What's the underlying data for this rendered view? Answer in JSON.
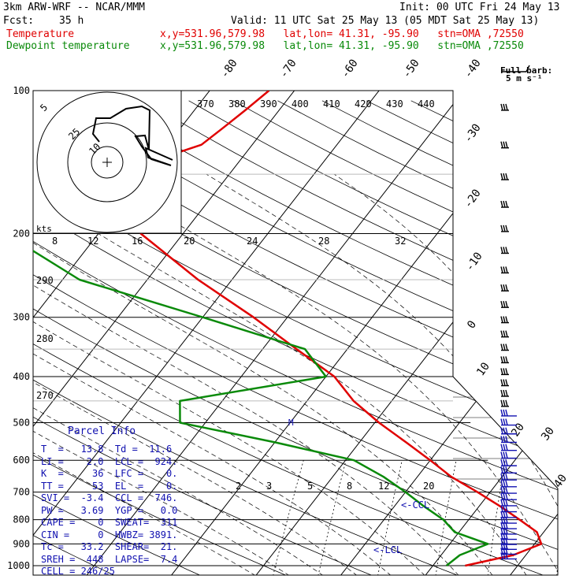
{
  "header": {
    "model": "3km ARW-WRF -- NCAR/MMM",
    "init": "Init: 00 UTC Fri 24 May 13",
    "fcst_label": "Fcst:",
    "fcst_value": "35 h",
    "valid": "Valid: 11 UTC Sat 25 May 13 (05 MDT Sat 25 May 13)",
    "temperature_label": "Temperature",
    "dewpoint_label": "Dewpoint temperature",
    "location": "x,y=531.96,579.98   lat,lon= 41.31, -95.90   stn=OMA ,72550"
  },
  "barb_key": {
    "line1": "Full barb:",
    "line2": "5 m s⁻¹"
  },
  "hodograph": {
    "units": "kts",
    "ring_labels": [
      "5",
      "25",
      "10"
    ]
  },
  "colors": {
    "temperature": "#e00000",
    "dewpoint": "#0a8a0a",
    "parcel": "#1010b0",
    "axes": "#000000"
  },
  "chart_data": {
    "type": "skew-t",
    "ylabel_ticks": [
      "100",
      "200",
      "300",
      "400",
      "500",
      "600",
      "700",
      "800",
      "900",
      "1000"
    ],
    "pressure_levels": [
      100,
      200,
      300,
      400,
      500,
      600,
      700,
      800,
      900,
      1000
    ],
    "temperature_ticks_top": [
      "-80",
      "-70",
      "-60",
      "-50",
      "-40"
    ],
    "temperature_ticks_right": [
      "-30",
      "-20",
      "-10",
      "0",
      "10",
      "20",
      "30",
      "40"
    ],
    "theta_labels": [
      "370",
      "380",
      "390",
      "400",
      "410",
      "420",
      "430",
      "440"
    ],
    "theta_e_labels": [
      "290",
      "280",
      "270"
    ],
    "mixing_ratio_upper": [
      "8",
      "12",
      "16",
      "20",
      "24",
      "28",
      "32"
    ],
    "mixing_ratio_lower": [
      "2",
      "3",
      "5",
      "8",
      "12",
      "20"
    ],
    "level_markers": {
      "ccl": "<-CCL",
      "lcl": "<-LCL",
      "m": "M"
    },
    "series": [
      {
        "name": "Temperature",
        "points": [
          {
            "p": 1000,
            "t": 13.8
          },
          {
            "p": 950,
            "t": 18.5
          },
          {
            "p": 900,
            "t": 20.8
          },
          {
            "p": 850,
            "t": 19.2
          },
          {
            "p": 800,
            "t": 16.0
          },
          {
            "p": 750,
            "t": 12.5
          },
          {
            "p": 700,
            "t": 8.5
          },
          {
            "p": 650,
            "t": 4.0
          },
          {
            "p": 600,
            "t": 0.0
          },
          {
            "p": 550,
            "t": -4.5
          },
          {
            "p": 500,
            "t": -9.5
          },
          {
            "p": 450,
            "t": -14.5
          },
          {
            "p": 400,
            "t": -19.0
          },
          {
            "p": 350,
            "t": -26.0
          },
          {
            "p": 300,
            "t": -34.0
          },
          {
            "p": 250,
            "t": -44.0
          },
          {
            "p": 200,
            "t": -55.0
          },
          {
            "p": 175,
            "t": -58.0
          },
          {
            "p": 150,
            "t": -59.0
          },
          {
            "p": 140,
            "t": -60.0
          },
          {
            "p": 130,
            "t": -56.0
          },
          {
            "p": 120,
            "t": -55.0
          },
          {
            "p": 110,
            "t": -54.0
          },
          {
            "p": 100,
            "t": -53.0
          }
        ]
      },
      {
        "name": "Dewpoint temperature",
        "points": [
          {
            "p": 1000,
            "t": 11.6
          },
          {
            "p": 950,
            "t": 12.2
          },
          {
            "p": 900,
            "t": 14.5
          },
          {
            "p": 850,
            "t": 9.5
          },
          {
            "p": 800,
            "t": 7.0
          },
          {
            "p": 750,
            "t": 3.5
          },
          {
            "p": 700,
            "t": 0.0
          },
          {
            "p": 650,
            "t": -4.0
          },
          {
            "p": 600,
            "t": -9.0
          },
          {
            "p": 550,
            "t": -20.0
          },
          {
            "p": 500,
            "t": -33.0
          },
          {
            "p": 450,
            "t": -35.0
          },
          {
            "p": 400,
            "t": -20.0
          },
          {
            "p": 350,
            "t": -25.0
          },
          {
            "p": 300,
            "t": -40.0
          },
          {
            "p": 250,
            "t": -58.0
          },
          {
            "p": 200,
            "t": -71.0
          },
          {
            "p": 175,
            "t": -72.0
          },
          {
            "p": 150,
            "t": -75.0
          },
          {
            "p": 130,
            "t": -76.0
          },
          {
            "p": 110,
            "t": -78.0
          },
          {
            "p": 100,
            "t": -79.0
          }
        ]
      }
    ]
  },
  "parcel_info": {
    "title": "Parcel Info",
    "rows": [
      "T  =   13.8  Td =  11.6",
      "LI =    2.0  LCL =  924.",
      "K  =     36  LFC =    0.",
      "TT =     53  EL  =    0.",
      "SVI =  -3.4  CCL =  746.",
      "PW =   3.69  YGP =   0.0",
      "CAPE =    0  SWEAT=  311",
      "CIN =     0  HWBZ= 3891.",
      "Tc =   33.2  SHEAR=  21.",
      "SREH =  448  LAPSE=  7.4",
      "CELL = 246/25"
    ]
  }
}
